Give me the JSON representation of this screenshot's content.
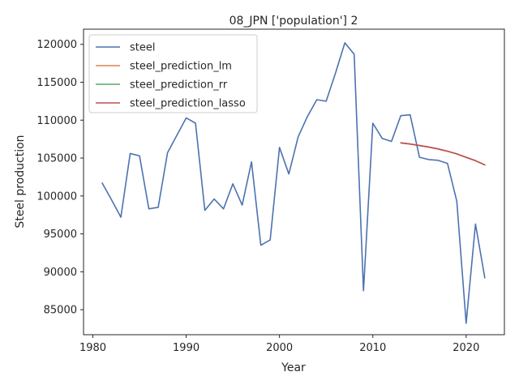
{
  "chart_data": {
    "type": "line",
    "title": "08_JPN ['population'] 2",
    "xlabel": "Year",
    "ylabel": "Steel production",
    "xlim": [
      1979.0,
      2024.1
    ],
    "ylim": [
      81700,
      122000
    ],
    "xticks": [
      1980,
      1990,
      2000,
      2010,
      2020
    ],
    "yticks": [
      85000,
      90000,
      95000,
      100000,
      105000,
      110000,
      115000,
      120000
    ],
    "grid": false,
    "legend_position": "top-left",
    "series": [
      {
        "name": "steel",
        "color": "#4c72b0",
        "x": [
          1981,
          1982,
          1983,
          1984,
          1985,
          1986,
          1987,
          1988,
          1989,
          1990,
          1991,
          1992,
          1993,
          1994,
          1995,
          1996,
          1997,
          1998,
          1999,
          2000,
          2001,
          2002,
          2003,
          2004,
          2005,
          2006,
          2007,
          2008,
          2009,
          2010,
          2011,
          2012,
          2013,
          2014,
          2015,
          2016,
          2017,
          2018,
          2019,
          2020,
          2021,
          2022
        ],
        "y": [
          101700,
          99500,
          97200,
          105600,
          105300,
          98300,
          98500,
          105700,
          108000,
          110300,
          109600,
          98100,
          99600,
          98300,
          101600,
          98800,
          104500,
          93500,
          94200,
          106400,
          102900,
          107800,
          110500,
          112700,
          112500,
          116200,
          120200,
          118700,
          87500,
          109600,
          107600,
          107200,
          110600,
          110700,
          105100,
          104800,
          104700,
          104300,
          99300,
          83200,
          96300,
          89200
        ]
      },
      {
        "name": "steel_prediction_lm",
        "color": "#dd8452",
        "x": [
          2013,
          2014,
          2015,
          2016,
          2017,
          2018,
          2019,
          2020,
          2021,
          2022
        ],
        "y": [
          107000,
          106850,
          106650,
          106450,
          106200,
          105900,
          105550,
          105100,
          104650,
          104100
        ]
      },
      {
        "name": "steel_prediction_rr",
        "color": "#55a868",
        "x": [
          2013,
          2014,
          2015,
          2016,
          2017,
          2018,
          2019,
          2020,
          2021,
          2022
        ],
        "y": [
          107000,
          106850,
          106650,
          106450,
          106200,
          105900,
          105550,
          105100,
          104650,
          104100
        ]
      },
      {
        "name": "steel_prediction_lasso",
        "color": "#c44e52",
        "x": [
          2013,
          2014,
          2015,
          2016,
          2017,
          2018,
          2019,
          2020,
          2021,
          2022
        ],
        "y": [
          107000,
          106850,
          106650,
          106450,
          106200,
          105900,
          105550,
          105100,
          104650,
          104100
        ]
      }
    ]
  }
}
